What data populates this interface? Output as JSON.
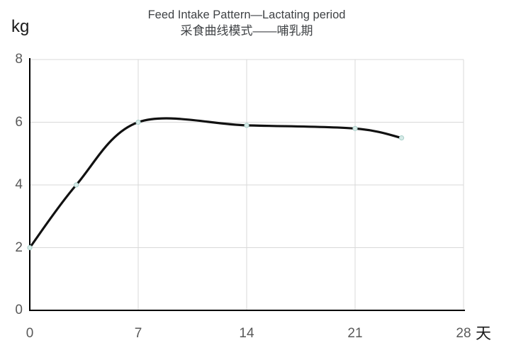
{
  "chart_data": {
    "type": "line",
    "title": "Feed Intake Pattern—Lactating period",
    "subtitle": "采食曲线模式——哺乳期",
    "ylabel": "kg",
    "xlabel": "天",
    "xlim": [
      0,
      28
    ],
    "ylim": [
      0,
      8
    ],
    "x_ticks": [
      0,
      7,
      14,
      21,
      28
    ],
    "y_ticks": [
      0,
      2,
      4,
      6,
      8
    ],
    "grid": true,
    "legend": "none",
    "series": [
      {
        "name": "feed-intake-lactating",
        "x": [
          0,
          3,
          7,
          14,
          21,
          24
        ],
        "y": [
          2,
          4,
          6,
          5.9,
          5.8,
          5.5
        ],
        "smooth": true,
        "line_color": "#111111",
        "marker_fill": "#d6eae7",
        "marker_stroke": "#a9cfc9"
      }
    ],
    "colors": {
      "grid": "#d9d9d9",
      "axis": "#000000",
      "tick_label": "#595959",
      "title": "#3f4245",
      "unit_label": "#1a1a1a",
      "background": "#ffffff"
    }
  }
}
